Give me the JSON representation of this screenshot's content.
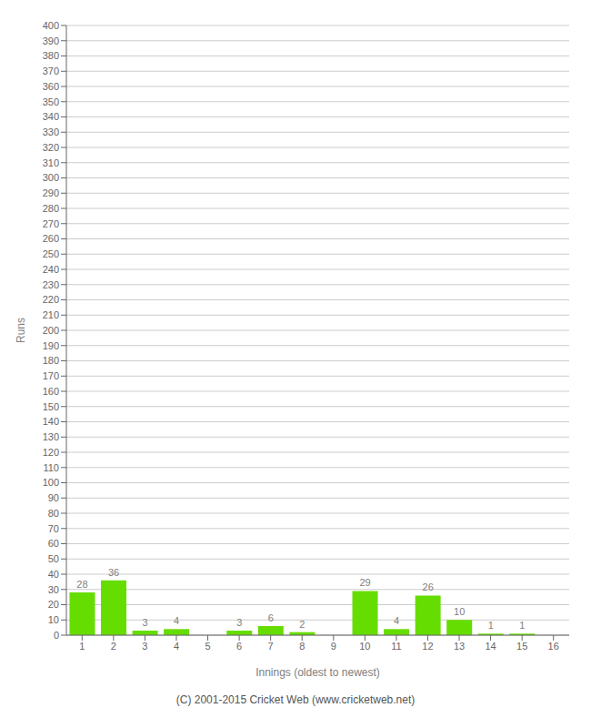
{
  "chart_data": {
    "type": "bar",
    "categories": [
      "1",
      "2",
      "3",
      "4",
      "5",
      "6",
      "7",
      "8",
      "9",
      "10",
      "11",
      "12",
      "13",
      "14",
      "15",
      "16"
    ],
    "values": [
      28,
      36,
      3,
      4,
      0,
      3,
      6,
      2,
      0,
      29,
      4,
      26,
      10,
      1,
      1,
      0
    ],
    "color": "#66dd00",
    "xlabel": "Innings (oldest to newest)",
    "ylabel": "Runs",
    "ylim": [
      0,
      400
    ],
    "yticks": [
      0,
      10,
      20,
      30,
      40,
      50,
      60,
      70,
      80,
      90,
      100,
      110,
      120,
      130,
      140,
      150,
      160,
      170,
      180,
      190,
      200,
      210,
      220,
      230,
      240,
      250,
      260,
      270,
      280,
      290,
      300,
      310,
      320,
      330,
      340,
      350,
      360,
      370,
      380,
      390,
      400
    ],
    "grid": true,
    "data_labels": true,
    "annotations": [
      "(C) 2001-2015 Cricket Web (www.cricketweb.net)"
    ]
  }
}
